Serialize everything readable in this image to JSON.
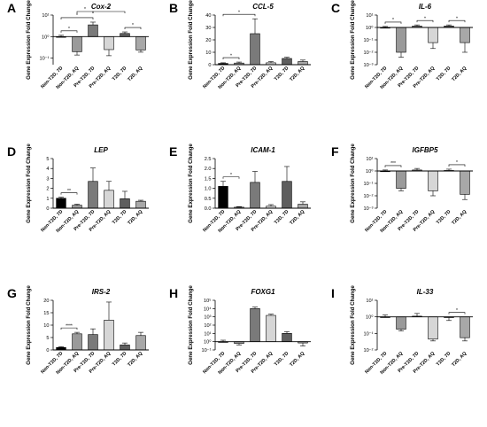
{
  "categories": [
    "Non-T2D, 7D",
    "Non-T2D, AQ",
    "Pre-T2D, 7D",
    "Pre-T2D, AQ",
    "T2D, 7D",
    "T2D, AQ"
  ],
  "ylabel": "Gene Expression Fold Change",
  "colors": [
    "#000000",
    "#9a9a9a",
    "#7a7a7a",
    "#d6d6d6",
    "#5e5e5e",
    "#a8a8a8"
  ],
  "chart_data": [
    {
      "panel": "A",
      "title": "Cox-2",
      "type": "bar",
      "scale": "log",
      "ylim": [
        0.05,
        10
      ],
      "ticks": [
        {
          "v": 10,
          "label": "10¹"
        },
        {
          "v": 1,
          "label": "10⁰"
        },
        {
          "v": 0.1,
          "label": "10⁻¹"
        }
      ],
      "baseline": 1,
      "values": [
        1.0,
        0.2,
        3.5,
        0.25,
        1.4,
        0.24
      ],
      "errors": [
        0.15,
        0.06,
        1.2,
        0.12,
        0.25,
        0.05
      ],
      "sig": [
        {
          "from": 0,
          "to": 1,
          "label": "*"
        },
        {
          "from": 0,
          "to": 2,
          "label": "*"
        },
        {
          "from": 1,
          "to": 2,
          "label": "*"
        },
        {
          "from": 2,
          "to": 4,
          "label": "*"
        },
        {
          "from": 4,
          "to": 5,
          "label": "*"
        }
      ]
    },
    {
      "panel": "B",
      "title": "CCL-5",
      "type": "bar",
      "scale": "linear",
      "ylim": [
        0,
        40
      ],
      "ticks": [
        {
          "v": 0,
          "label": "0"
        },
        {
          "v": 10,
          "label": "10"
        },
        {
          "v": 20,
          "label": "20"
        },
        {
          "v": 30,
          "label": "30"
        },
        {
          "v": 40,
          "label": "40"
        }
      ],
      "baseline": 0,
      "values": [
        1.0,
        1.3,
        25,
        1.5,
        5,
        2.5
      ],
      "errors": [
        0.5,
        0.8,
        12,
        1.0,
        1.0,
        1.2
      ],
      "sig": [
        {
          "from": 0,
          "to": 1,
          "label": "*"
        },
        {
          "from": 0,
          "to": 2,
          "label": "*"
        }
      ]
    },
    {
      "panel": "C",
      "title": "IL-6",
      "type": "bar",
      "scale": "log",
      "ylim": [
        0.001,
        10
      ],
      "ticks": [
        {
          "v": 10,
          "label": "10¹"
        },
        {
          "v": 1,
          "label": "10⁰"
        },
        {
          "v": 0.1,
          "label": "10⁻¹"
        },
        {
          "v": 0.01,
          "label": "10⁻²"
        },
        {
          "v": 0.001,
          "label": "10⁻³"
        }
      ],
      "baseline": 1,
      "values": [
        1.0,
        0.01,
        1.3,
        0.06,
        1.3,
        0.06
      ],
      "errors": [
        0.2,
        0.006,
        0.3,
        0.04,
        0.3,
        0.05
      ],
      "sig": [
        {
          "from": 0,
          "to": 1,
          "label": "*"
        },
        {
          "from": 2,
          "to": 3,
          "label": "*"
        },
        {
          "from": 4,
          "to": 5,
          "label": "*"
        }
      ]
    },
    {
      "panel": "D",
      "title": "LEP",
      "type": "bar",
      "scale": "linear",
      "ylim": [
        0,
        5
      ],
      "ticks": [
        {
          "v": 0,
          "label": "0"
        },
        {
          "v": 1,
          "label": "1"
        },
        {
          "v": 2,
          "label": "2"
        },
        {
          "v": 3,
          "label": "3"
        },
        {
          "v": 4,
          "label": "4"
        },
        {
          "v": 5,
          "label": "5"
        }
      ],
      "baseline": 0,
      "values": [
        1.0,
        0.3,
        2.7,
        1.8,
        0.95,
        0.7
      ],
      "errors": [
        0.1,
        0.1,
        1.35,
        0.9,
        0.75,
        0.1
      ],
      "sig": [
        {
          "from": 0,
          "to": 1,
          "label": "**"
        }
      ]
    },
    {
      "panel": "E",
      "title": "ICAM-1",
      "type": "bar",
      "scale": "linear",
      "ylim": [
        0,
        2.5
      ],
      "ticks": [
        {
          "v": 0,
          "label": "0.0"
        },
        {
          "v": 0.5,
          "label": "0.5"
        },
        {
          "v": 1,
          "label": "1.0"
        },
        {
          "v": 1.5,
          "label": "1.5"
        },
        {
          "v": 2,
          "label": "2.0"
        },
        {
          "v": 2.5,
          "label": "2.5"
        }
      ],
      "baseline": 0,
      "values": [
        1.1,
        0.05,
        1.3,
        0.1,
        1.35,
        0.2
      ],
      "errors": [
        0.25,
        0.03,
        0.55,
        0.08,
        0.75,
        0.12
      ],
      "sig": [
        {
          "from": 0,
          "to": 1,
          "label": "*"
        }
      ]
    },
    {
      "panel": "F",
      "title": "IGFBP5",
      "type": "bar",
      "scale": "log",
      "ylim": [
        0.001,
        10
      ],
      "ticks": [
        {
          "v": 10,
          "label": "10¹"
        },
        {
          "v": 1,
          "label": "10⁰"
        },
        {
          "v": 0.1,
          "label": "10⁻¹"
        },
        {
          "v": 0.01,
          "label": "10⁻²"
        },
        {
          "v": 0.001,
          "label": "10⁻³"
        }
      ],
      "baseline": 1,
      "values": [
        1.0,
        0.04,
        1.2,
        0.025,
        1.1,
        0.013
      ],
      "errors": [
        0.2,
        0.015,
        0.4,
        0.015,
        0.3,
        0.008
      ],
      "sig": [
        {
          "from": 0,
          "to": 1,
          "label": "***"
        },
        {
          "from": 4,
          "to": 5,
          "label": "*"
        }
      ]
    },
    {
      "panel": "G",
      "title": "IRS-2",
      "type": "bar",
      "scale": "linear",
      "ylim": [
        0,
        20
      ],
      "ticks": [
        {
          "v": 0,
          "label": "0"
        },
        {
          "v": 5,
          "label": "5"
        },
        {
          "v": 10,
          "label": "10"
        },
        {
          "v": 15,
          "label": "15"
        },
        {
          "v": 20,
          "label": "20"
        }
      ],
      "baseline": 0,
      "values": [
        1.0,
        6.5,
        6.2,
        12,
        2.0,
        5.8
      ],
      "errors": [
        0.3,
        0.6,
        2.3,
        7.3,
        0.8,
        1.3
      ],
      "sig": [
        {
          "from": 0,
          "to": 1,
          "label": "****"
        }
      ]
    },
    {
      "panel": "H",
      "title": "FOXG1",
      "type": "bar",
      "scale": "log",
      "ylim": [
        0.1,
        100000
      ],
      "ticks": [
        {
          "v": 100000,
          "label": "10⁵"
        },
        {
          "v": 10000,
          "label": "10⁴"
        },
        {
          "v": 1000,
          "label": "10³"
        },
        {
          "v": 100,
          "label": "10²"
        },
        {
          "v": 10,
          "label": "10¹"
        },
        {
          "v": 1,
          "label": "10⁰"
        },
        {
          "v": 0.1,
          "label": "10⁻¹"
        }
      ],
      "baseline": 1,
      "values": [
        1.0,
        0.6,
        10000,
        1500,
        10,
        0.7
      ],
      "errors": [
        0.5,
        0.2,
        5000,
        600,
        6,
        0.4
      ],
      "sig": []
    },
    {
      "panel": "I",
      "title": "IL-33",
      "type": "bar",
      "scale": "log",
      "ylim": [
        0.01,
        10
      ],
      "ticks": [
        {
          "v": 10,
          "label": "10¹"
        },
        {
          "v": 1,
          "label": "10⁰"
        },
        {
          "v": 0.1,
          "label": "10⁻¹"
        },
        {
          "v": 0.01,
          "label": "10⁻²"
        }
      ],
      "baseline": 1,
      "values": [
        1.0,
        0.18,
        1.1,
        0.045,
        0.9,
        0.055
      ],
      "errors": [
        0.3,
        0.04,
        0.5,
        0.01,
        0.3,
        0.02
      ],
      "sig": [
        {
          "from": 4,
          "to": 5,
          "label": "*"
        }
      ]
    }
  ]
}
